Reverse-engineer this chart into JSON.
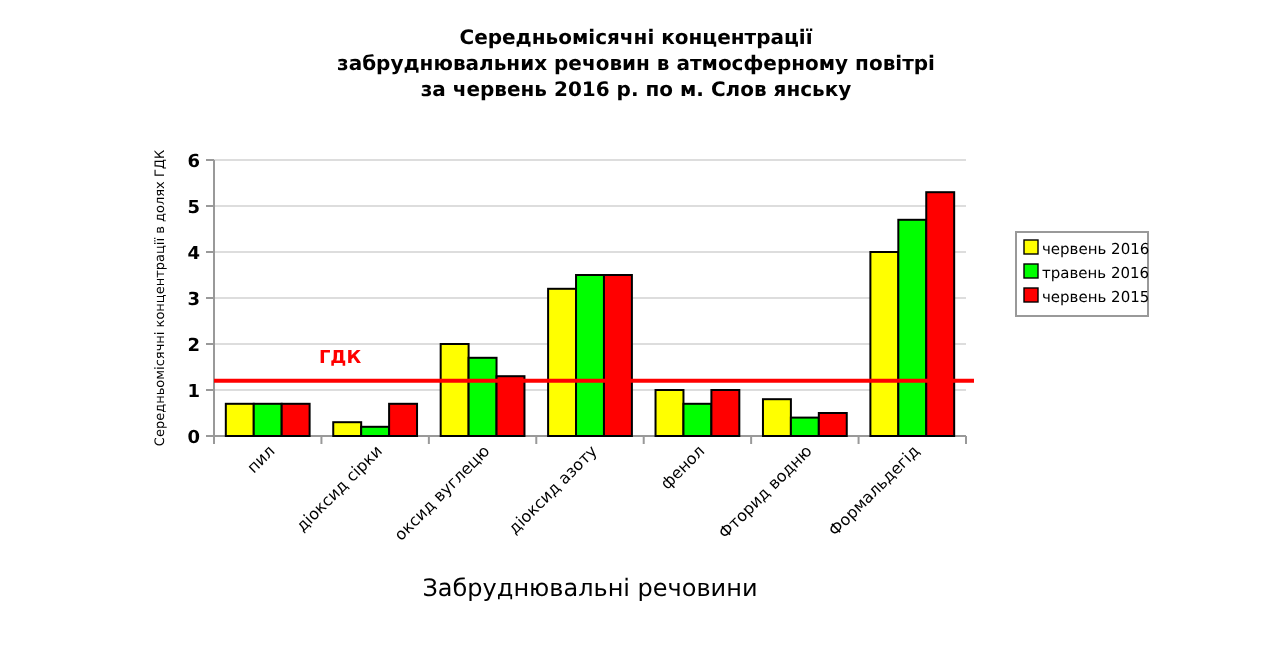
{
  "chart_data": {
    "type": "bar",
    "title": "Середньомісячні концентрації\nзабруднювальних речовин в атмосферному повітрі\nза червень 2016 р. по м. Слов янську",
    "xlabel": "Забруднювальні речовини",
    "ylabel": "Середньомісячні концентрації в долях ГДК",
    "categories": [
      "пил",
      "діоксид сірки",
      "оксид вуглецю",
      "діоксид азоту",
      "фенол",
      "Фторид водню",
      "Формальдегід"
    ],
    "series": [
      {
        "name": "червень 2016",
        "color": "#ffff00",
        "values": [
          0.7,
          0.3,
          2.0,
          3.2,
          1.0,
          0.8,
          4.0
        ]
      },
      {
        "name": "травень 2016",
        "color": "#00ff00",
        "values": [
          0.7,
          0.2,
          1.7,
          3.5,
          0.7,
          0.4,
          4.7
        ]
      },
      {
        "name": "червень 2015",
        "color": "#ff0000",
        "values": [
          0.7,
          0.7,
          1.3,
          3.5,
          1.0,
          0.5,
          5.3
        ]
      }
    ],
    "ylim": [
      0,
      6
    ],
    "yticks": [
      0,
      1,
      2,
      3,
      4,
      5,
      6
    ],
    "grid": "y",
    "legend": "right",
    "ref_lines": [
      {
        "axis": "y",
        "value": 1.2,
        "label": "ГДК",
        "color": "#ff0000"
      }
    ]
  }
}
